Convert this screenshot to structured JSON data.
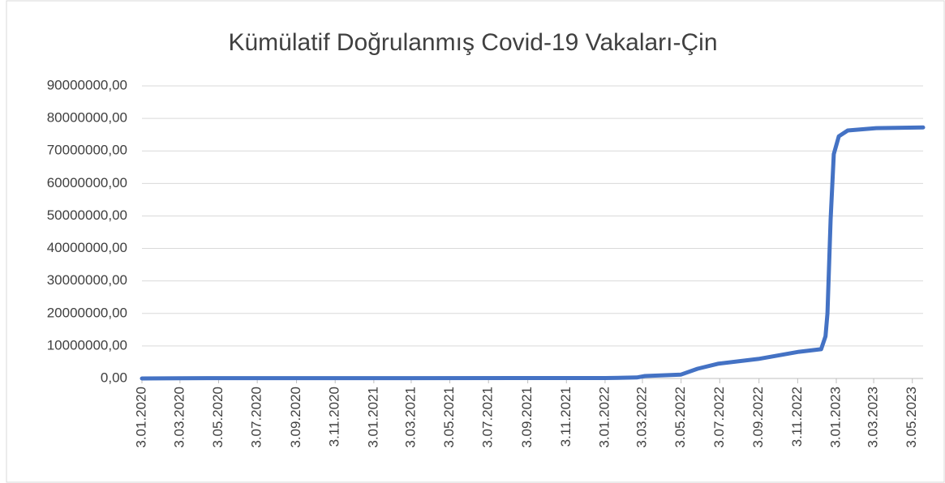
{
  "chart_data": {
    "type": "line",
    "title": "Kümülatif Doğrulanmış Covid-19 Vakaları-Çin",
    "x": [
      "3.01.2020",
      "3.03.2020",
      "3.01.2021",
      "3.01.2022",
      "22.02.2022",
      "7.03.2022",
      "3.05.2022",
      "29.05.2022",
      "30.06.2022",
      "2.09.2022",
      "5.11.2022",
      "10.12.2022",
      "17.12.2022",
      "20.12.2022",
      "25.12.2022",
      "30.12.2022",
      "7.01.2023",
      "21.01.2023",
      "7.03.2023",
      "20.05.2023"
    ],
    "series": [
      {
        "name": "Çin",
        "color": "#4472c4",
        "values": [
          0,
          80000,
          95000,
          130000,
          300000,
          750000,
          1200000,
          3000000,
          4500000,
          6000000,
          8200000,
          9000000,
          13000000,
          20000000,
          49000000,
          69000000,
          74500000,
          76300000,
          77000000,
          77200000
        ]
      }
    ],
    "xlim": [
      "3.01.2020",
      "20.05.2023"
    ],
    "xticks": [
      "3.01.2020",
      "3.03.2020",
      "3.05.2020",
      "3.07.2020",
      "3.09.2020",
      "3.11.2020",
      "3.01.2021",
      "3.03.2021",
      "3.05.2021",
      "3.07.2021",
      "3.09.2021",
      "3.11.2021",
      "3.01.2022",
      "3.03.2022",
      "3.05.2022",
      "3.07.2022",
      "3.09.2022",
      "3.11.2022",
      "3.01.2023",
      "3.03.2023",
      "3.05.2023"
    ],
    "ylim": [
      0,
      90000000
    ],
    "yticks": [
      {
        "value": 0,
        "label": "0,00"
      },
      {
        "value": 10000000,
        "label": "10000000,00"
      },
      {
        "value": 20000000,
        "label": "20000000,00"
      },
      {
        "value": 30000000,
        "label": "30000000,00"
      },
      {
        "value": 40000000,
        "label": "40000000,00"
      },
      {
        "value": 50000000,
        "label": "50000000,00"
      },
      {
        "value": 60000000,
        "label": "60000000,00"
      },
      {
        "value": 70000000,
        "label": "70000000,00"
      },
      {
        "value": 80000000,
        "label": "80000000,00"
      },
      {
        "value": 90000000,
        "label": "90000000,00"
      }
    ],
    "grid": true
  }
}
